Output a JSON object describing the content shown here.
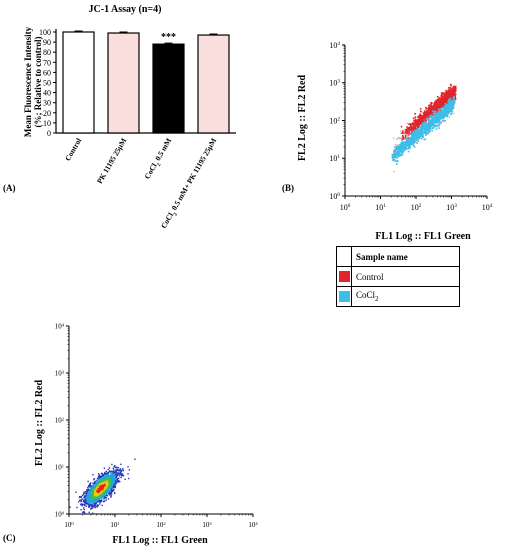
{
  "panel_labels": {
    "a": "(A)",
    "b": "(B)",
    "c": "(C)"
  },
  "colors": {
    "control_red": "#e0252b",
    "cocl2_blue": "#3fbde8",
    "bar_pink": "#fbdede",
    "bar_black": "#000000"
  },
  "legend": {
    "header": "Sample name",
    "items": [
      {
        "label": "Control",
        "color": "#e0252b"
      },
      {
        "label": "CoCl2",
        "color": "#3fbde8"
      }
    ]
  },
  "chart_data": [
    {
      "type": "bar",
      "title": "JC-1 Assay (n=4)",
      "ylabel": "Mean Fluorescence Intensity (%; Relative to control)",
      "ylim": [
        0,
        100
      ],
      "yticks": [
        "0",
        "10",
        "20",
        "30",
        "40",
        "50",
        "60",
        "70",
        "80",
        "90",
        "100"
      ],
      "categories": [
        "Control",
        "PK 11195 25μM",
        "CoCl2 0.5 mM",
        "CoCl2 0.5 mM+ PK 11195 25μM"
      ],
      "values": [
        100,
        99,
        88,
        97
      ],
      "errors": [
        1,
        1,
        1,
        1
      ],
      "bar_colors": [
        "#ffffff",
        "#fbdede",
        "#000000",
        "#fbdede"
      ],
      "annotations": [
        {
          "category": "CoCl2 0.5 mM",
          "text": "***"
        }
      ]
    },
    {
      "type": "scatter",
      "xlabel": "FL1 Log :: FL1 Green",
      "ylabel": "FL2 Log :: FL2 Red",
      "scale": "log",
      "xlim": [
        1,
        10000
      ],
      "ylim": [
        1,
        10000
      ],
      "xticks": [
        "10",
        "10",
        "10",
        "10",
        "10"
      ],
      "yticks": [
        "10",
        "10",
        "10",
        "10",
        "10"
      ],
      "tick_exponents": [
        "0",
        "1",
        "2",
        "3",
        "4"
      ],
      "series": [
        {
          "name": "Control",
          "color": "#e0252b"
        },
        {
          "name": "CoCl2",
          "color": "#3fbde8"
        }
      ]
    },
    {
      "type": "heatmap",
      "xlabel": "FL1 Log :: FL1 Green",
      "ylabel": "FL2 Log :: FL2 Red",
      "scale": "log",
      "xlim": [
        1,
        10000
      ],
      "ylim": [
        1,
        10000
      ],
      "xticks": [
        "10",
        "10",
        "10",
        "10",
        "10"
      ],
      "yticks": [
        "10",
        "10",
        "10",
        "10",
        "10"
      ],
      "tick_exponents": [
        "0",
        "1",
        "2",
        "3",
        "4"
      ]
    }
  ]
}
